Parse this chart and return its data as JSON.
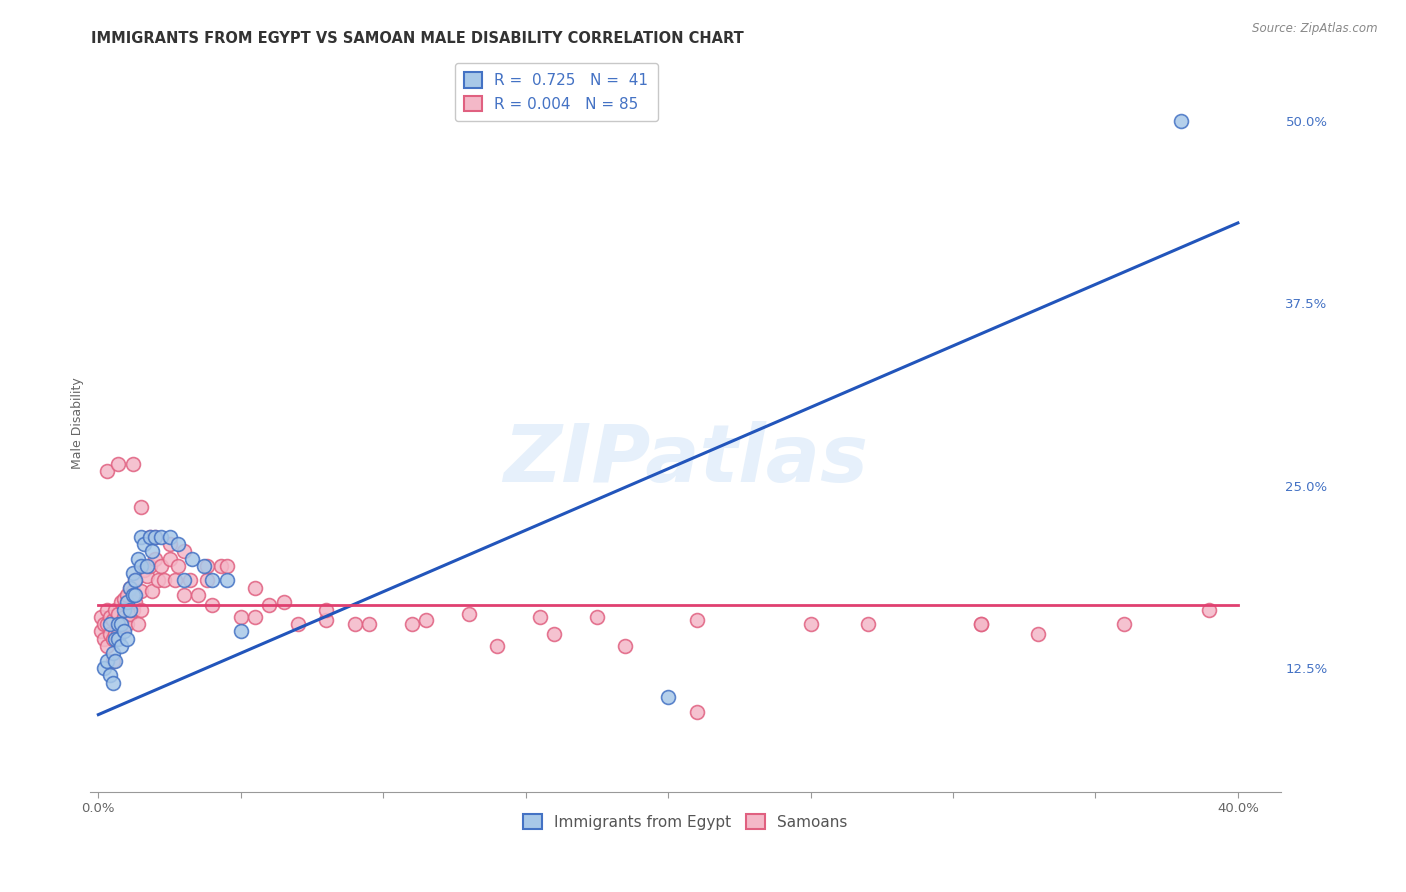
{
  "title": "IMMIGRANTS FROM EGYPT VS SAMOAN MALE DISABILITY CORRELATION CHART",
  "source": "Source: ZipAtlas.com",
  "xlabel_label": "Immigrants from Egypt",
  "ylabel_label": "Male Disability",
  "x_tick_values": [
    0.0,
    0.05,
    0.1,
    0.15,
    0.2,
    0.25,
    0.3,
    0.35,
    0.4
  ],
  "x_tick_labels_show": [
    "0.0%",
    "",
    "",
    "",
    "",
    "",
    "",
    "",
    "40.0%"
  ],
  "y_tick_values": [
    0.125,
    0.25,
    0.375,
    0.5
  ],
  "y_tick_labels": [
    "12.5%",
    "25.0%",
    "37.5%",
    "50.0%"
  ],
  "xlim": [
    -0.003,
    0.415
  ],
  "ylim": [
    0.04,
    0.545
  ],
  "legend_blue_r": "0.725",
  "legend_blue_n": "41",
  "legend_pink_r": "0.004",
  "legend_pink_n": "85",
  "blue_fill": "#a8c8e8",
  "blue_edge": "#4472c4",
  "pink_fill": "#f4b8c8",
  "pink_edge": "#e06080",
  "blue_line_color": "#2255bb",
  "pink_line_color": "#e04070",
  "watermark": "ZIPatlas",
  "blue_points_x": [
    0.002,
    0.003,
    0.004,
    0.004,
    0.005,
    0.005,
    0.006,
    0.006,
    0.007,
    0.007,
    0.008,
    0.008,
    0.009,
    0.009,
    0.01,
    0.01,
    0.011,
    0.011,
    0.012,
    0.012,
    0.013,
    0.013,
    0.014,
    0.015,
    0.015,
    0.016,
    0.017,
    0.018,
    0.019,
    0.02,
    0.022,
    0.025,
    0.028,
    0.03,
    0.033,
    0.037,
    0.04,
    0.045,
    0.05,
    0.2,
    0.38
  ],
  "blue_points_y": [
    0.125,
    0.13,
    0.12,
    0.155,
    0.115,
    0.135,
    0.145,
    0.13,
    0.145,
    0.155,
    0.14,
    0.155,
    0.15,
    0.165,
    0.145,
    0.17,
    0.165,
    0.18,
    0.175,
    0.19,
    0.185,
    0.175,
    0.2,
    0.215,
    0.195,
    0.21,
    0.195,
    0.215,
    0.205,
    0.215,
    0.215,
    0.215,
    0.21,
    0.185,
    0.2,
    0.195,
    0.185,
    0.185,
    0.15,
    0.105,
    0.5
  ],
  "pink_points_x": [
    0.001,
    0.001,
    0.002,
    0.002,
    0.003,
    0.003,
    0.003,
    0.004,
    0.004,
    0.005,
    0.005,
    0.005,
    0.006,
    0.006,
    0.007,
    0.007,
    0.008,
    0.008,
    0.009,
    0.009,
    0.01,
    0.01,
    0.011,
    0.011,
    0.012,
    0.012,
    0.013,
    0.013,
    0.014,
    0.015,
    0.015,
    0.016,
    0.017,
    0.018,
    0.019,
    0.02,
    0.021,
    0.022,
    0.023,
    0.025,
    0.027,
    0.028,
    0.03,
    0.032,
    0.035,
    0.038,
    0.04,
    0.043,
    0.05,
    0.055,
    0.06,
    0.07,
    0.08,
    0.09,
    0.11,
    0.13,
    0.155,
    0.175,
    0.21,
    0.25,
    0.27,
    0.31,
    0.33,
    0.36,
    0.39,
    0.003,
    0.007,
    0.012,
    0.015,
    0.018,
    0.02,
    0.025,
    0.03,
    0.038,
    0.045,
    0.055,
    0.065,
    0.08,
    0.095,
    0.115,
    0.14,
    0.16,
    0.185,
    0.21,
    0.31
  ],
  "pink_points_y": [
    0.15,
    0.16,
    0.145,
    0.155,
    0.14,
    0.155,
    0.165,
    0.148,
    0.16,
    0.13,
    0.145,
    0.158,
    0.148,
    0.165,
    0.148,
    0.162,
    0.155,
    0.17,
    0.16,
    0.172,
    0.155,
    0.175,
    0.162,
    0.18,
    0.165,
    0.178,
    0.17,
    0.185,
    0.155,
    0.165,
    0.178,
    0.192,
    0.188,
    0.195,
    0.178,
    0.2,
    0.185,
    0.195,
    0.185,
    0.2,
    0.185,
    0.195,
    0.175,
    0.185,
    0.175,
    0.185,
    0.168,
    0.195,
    0.16,
    0.16,
    0.168,
    0.155,
    0.158,
    0.155,
    0.155,
    0.162,
    0.16,
    0.16,
    0.158,
    0.155,
    0.155,
    0.155,
    0.148,
    0.155,
    0.165,
    0.26,
    0.265,
    0.265,
    0.235,
    0.215,
    0.215,
    0.21,
    0.205,
    0.195,
    0.195,
    0.18,
    0.17,
    0.165,
    0.155,
    0.158,
    0.14,
    0.148,
    0.14,
    0.095,
    0.155
  ],
  "blue_line_x": [
    0.0,
    0.4
  ],
  "blue_line_y": [
    0.093,
    0.43
  ],
  "pink_line_x": [
    0.0,
    0.4
  ],
  "pink_line_y": [
    0.168,
    0.168
  ],
  "grid_color": "#cccccc",
  "background_color": "#ffffff",
  "title_fontsize": 10.5,
  "axis_label_fontsize": 9,
  "tick_fontsize": 9.5,
  "legend_fontsize": 11
}
